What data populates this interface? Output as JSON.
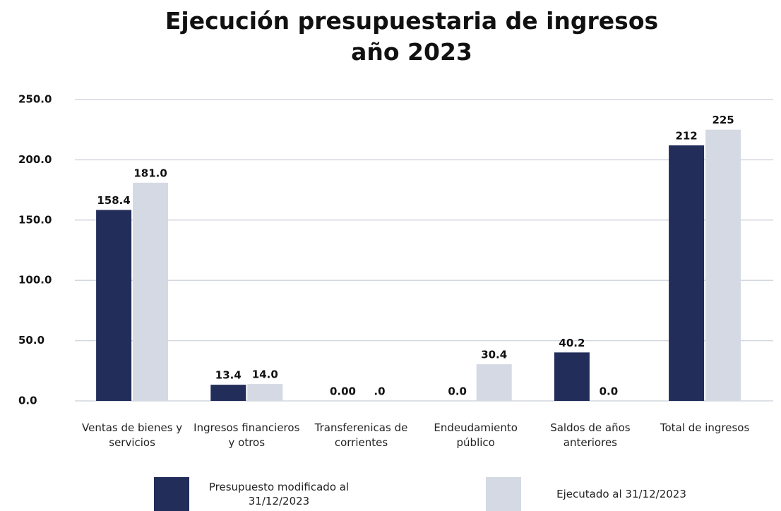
{
  "chart_data": {
    "type": "bar",
    "title": "Ejecución presupuestaria de ingresos año 2023",
    "categories": [
      "Ventas de bienes y servicios",
      "Ingresos financieros y otros",
      "Transferenicas de corrientes",
      "Endeudamiento público",
      "Saldos de años anteriores",
      "Total de ingresos"
    ],
    "series": [
      {
        "name": "Presupuesto modificado al 31/12/2023",
        "color": "#222d5a",
        "values": [
          158.4,
          13.4,
          0,
          0,
          40.2,
          212
        ],
        "value_labels": [
          "158.4",
          "13.4",
          "0.00",
          "0.0",
          "40.2",
          "212"
        ]
      },
      {
        "name": "Ejecutado al 31/12/2023",
        "color": "#d5d9e3",
        "values": [
          181,
          14,
          0,
          30.4,
          0,
          225
        ],
        "value_labels": [
          "181.0",
          "14.0",
          ".0",
          "30.4",
          "0.0",
          "225"
        ]
      }
    ],
    "ylim": [
      0,
      250
    ],
    "yticks": [
      {
        "value": 0,
        "label": "0.0"
      },
      {
        "value": 50,
        "label": "50.0"
      },
      {
        "value": 100,
        "label": "100.0"
      },
      {
        "value": 150,
        "label": "150.0"
      },
      {
        "value": 200,
        "label": "200.0"
      },
      {
        "value": 250,
        "label": "250.0"
      }
    ],
    "grid": true
  }
}
